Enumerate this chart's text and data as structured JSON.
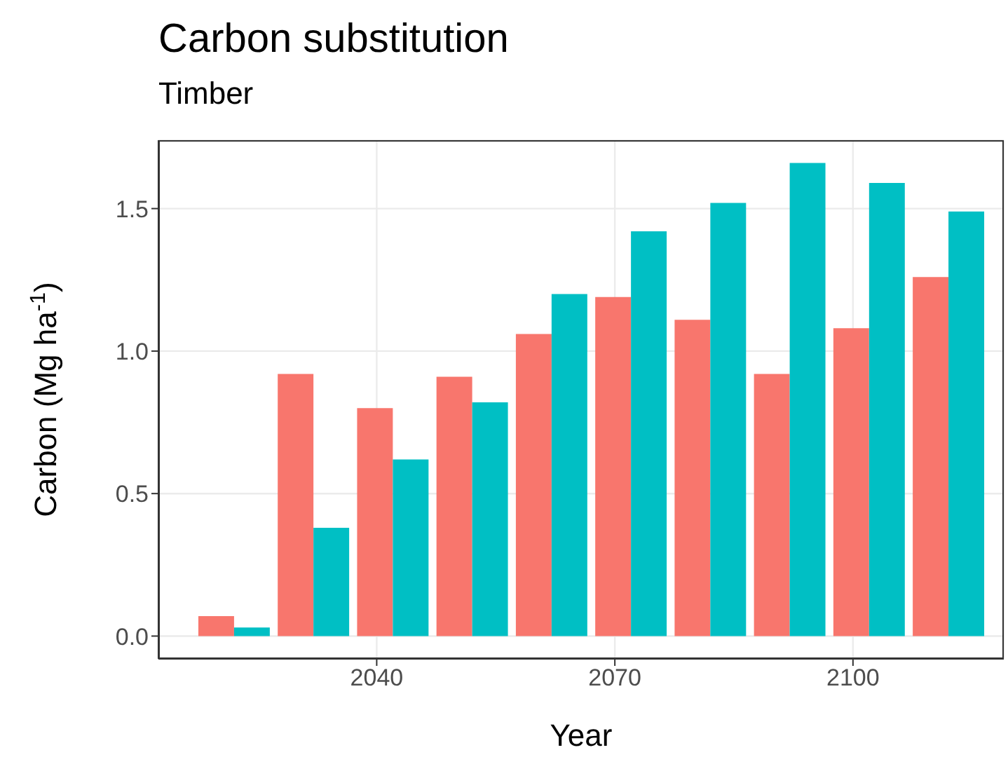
{
  "chart_data": {
    "type": "bar",
    "title": "Carbon substitution",
    "subtitle": "Timber",
    "xlabel": "Year",
    "ylabel": "Carbon (Mg ha$^{-1}$)",
    "x": [
      2022,
      2032,
      2042,
      2052,
      2062,
      2072,
      2082,
      2092,
      2102,
      2112
    ],
    "series": [
      {
        "color": "#f8766d",
        "values": [
          0.07,
          0.92,
          0.8,
          0.91,
          1.06,
          1.19,
          1.11,
          0.92,
          1.08,
          1.26
        ]
      },
      {
        "color": "#00bfc4",
        "values": [
          0.03,
          0.38,
          0.62,
          0.82,
          1.2,
          1.42,
          1.52,
          1.66,
          1.59,
          1.49
        ]
      }
    ],
    "xlim": [
      2012.5,
      2119
    ],
    "xticks": [
      2040,
      2070,
      2100
    ],
    "ylim": [
      -0.08,
      1.74
    ],
    "yticks": [
      {
        "value": 0,
        "label": "0.0"
      },
      0.5,
      {
        "value": 1,
        "label": "1.0"
      },
      1.5
    ],
    "grid": true,
    "legend": false
  }
}
